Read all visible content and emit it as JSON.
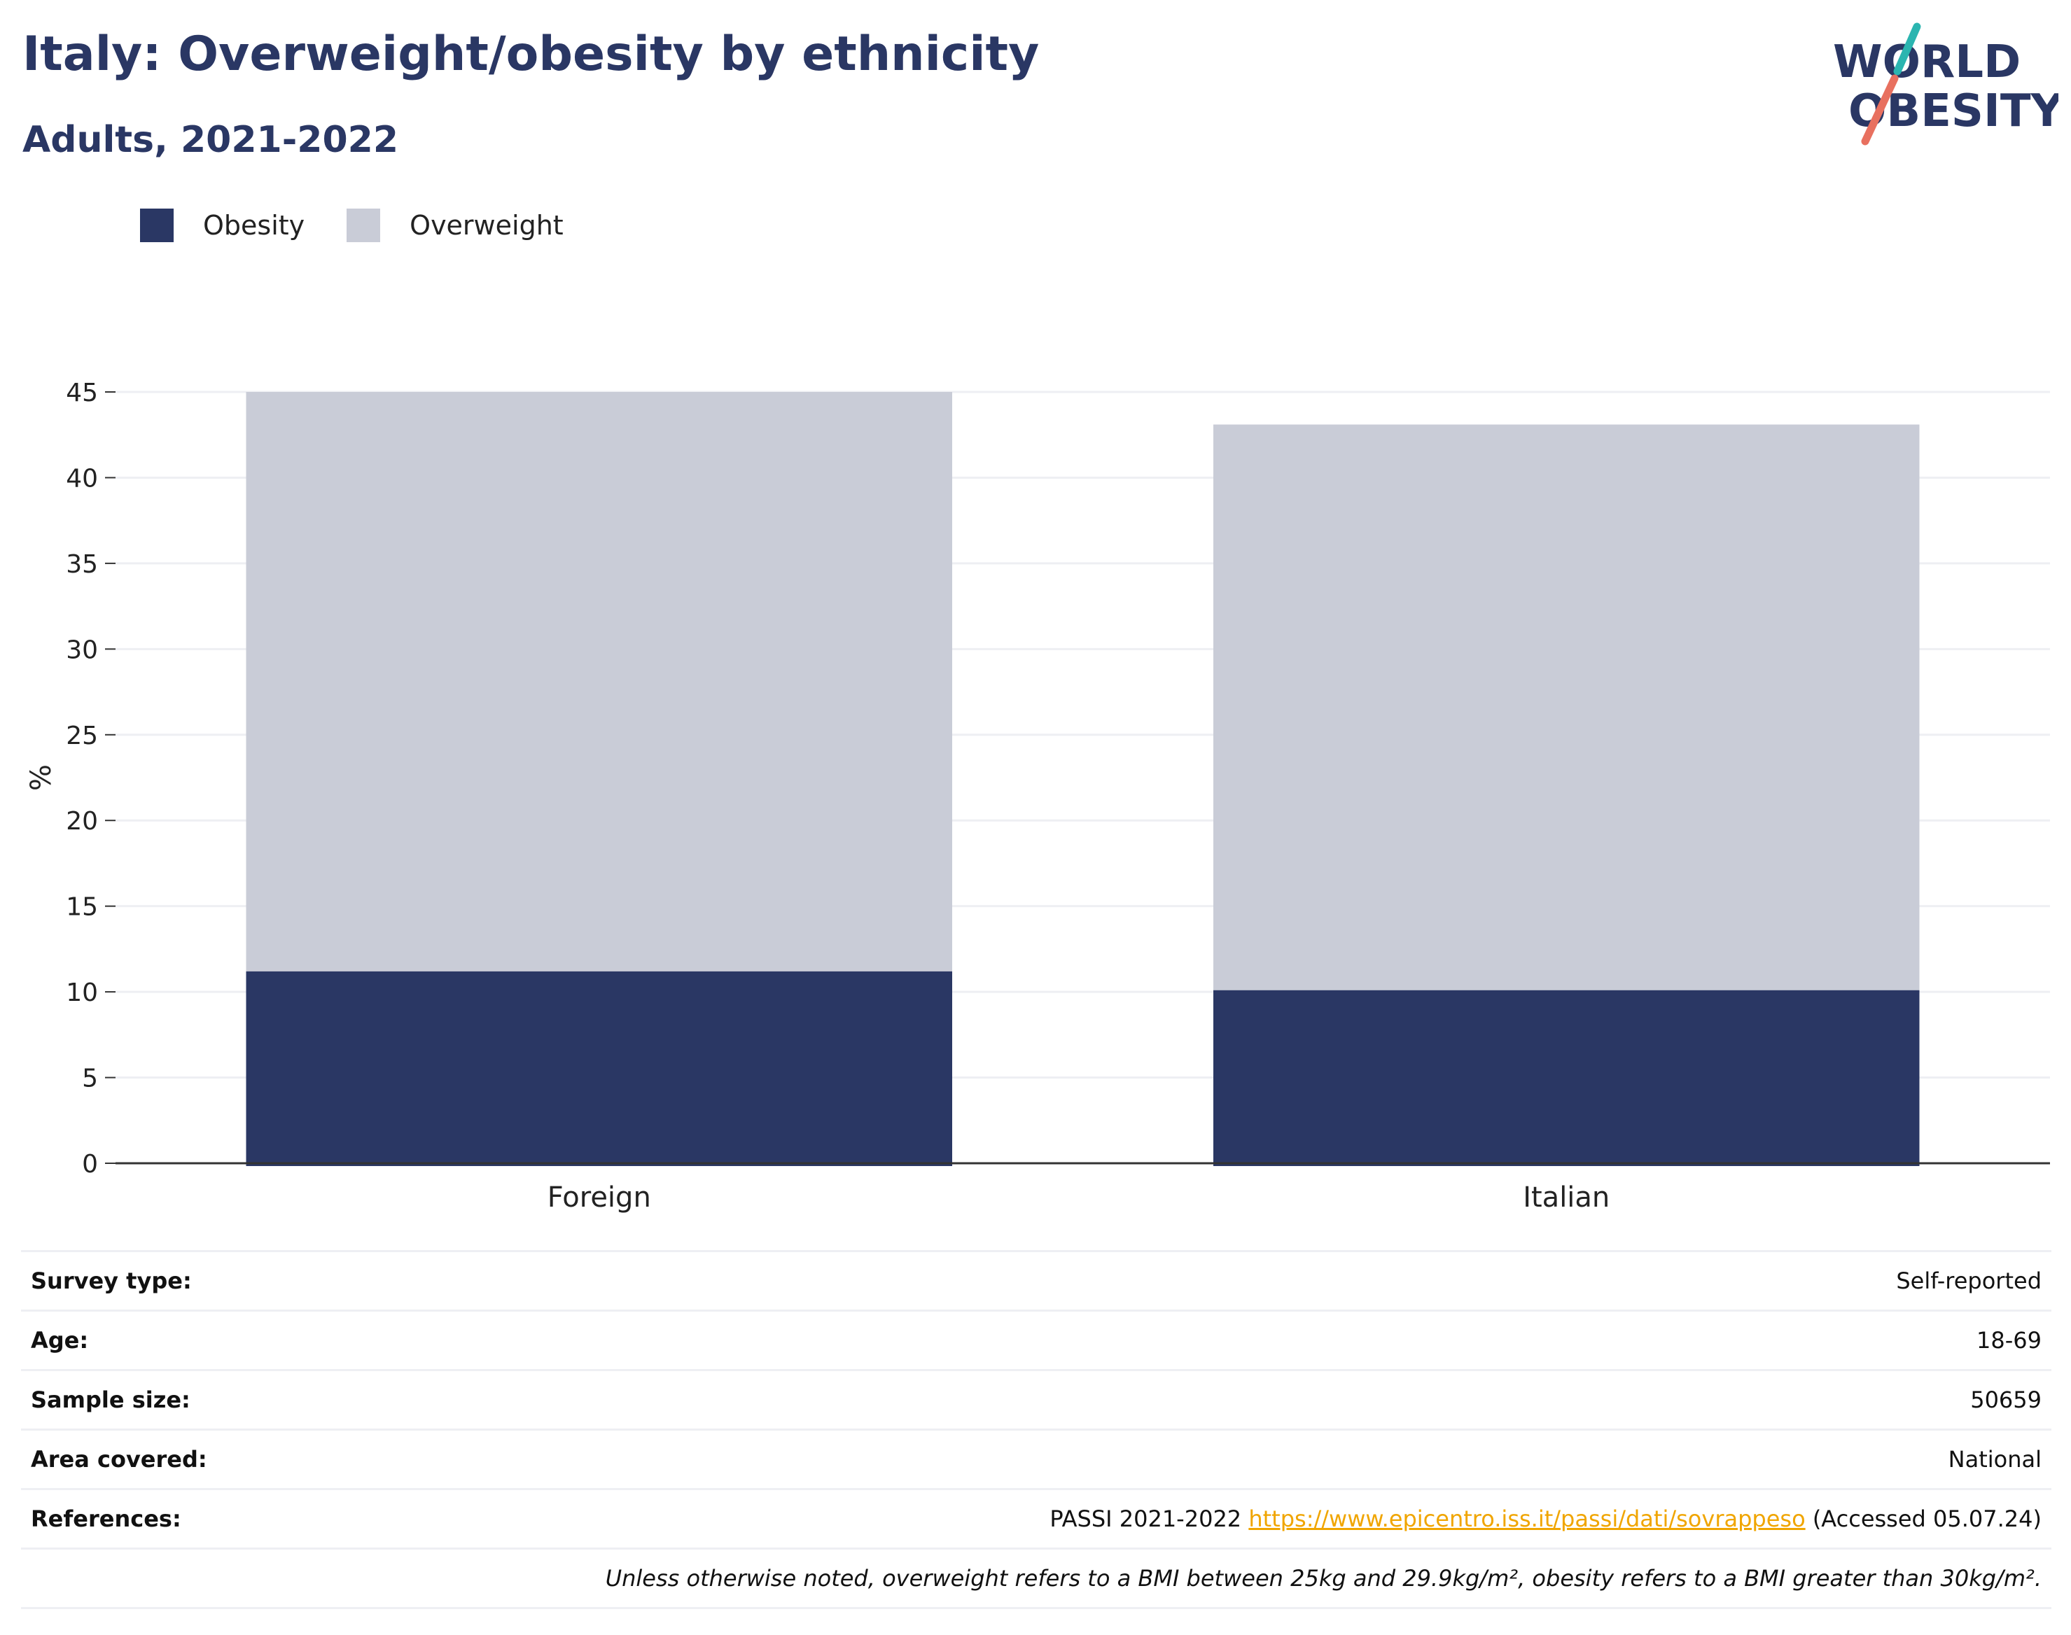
{
  "header": {
    "title": "Italy: Overweight/obesity by ethnicity",
    "subtitle": "Adults, 2021-2022"
  },
  "logo": {
    "line1": "WORLD",
    "line2": "OBESITY",
    "colors": {
      "text": "#2a3764",
      "slash_teal": "#2bb5b0",
      "slash_coral": "#e8705f"
    }
  },
  "colors": {
    "obesity": "#2a3764",
    "overweight": "#c9ccd7",
    "grid": "#eeeff3",
    "axis": "#333333"
  },
  "chart_data": {
    "type": "bar",
    "stacked": true,
    "categories": [
      "Foreign",
      "Italian"
    ],
    "series": [
      {
        "name": "Obesity",
        "values": [
          11.2,
          10.1
        ]
      },
      {
        "name": "Overweight",
        "values": [
          33.8,
          33.0
        ]
      }
    ],
    "ylabel": "%",
    "xlabel": "",
    "ylim": [
      0,
      45
    ],
    "yticks": [
      0,
      5,
      10,
      15,
      20,
      25,
      30,
      35,
      40,
      45
    ],
    "grid": true,
    "legend": "top-left"
  },
  "info": {
    "rows": [
      {
        "label": "Survey type:",
        "value": "Self-reported"
      },
      {
        "label": "Age:",
        "value": "18-69"
      },
      {
        "label": "Sample size:",
        "value": "50659"
      },
      {
        "label": "Area covered:",
        "value": "National"
      }
    ],
    "references": {
      "label": "References:",
      "prefix": "PASSI 2021-2022",
      "link": "https://www.epicentro.iss.it/passi/dati/sovrappeso",
      "suffix": "(Accessed 05.07.24)"
    },
    "note": "Unless otherwise noted, overweight refers to a BMI between 25kg and 29.9kg/m², obesity refers to a BMI greater than 30kg/m²."
  }
}
